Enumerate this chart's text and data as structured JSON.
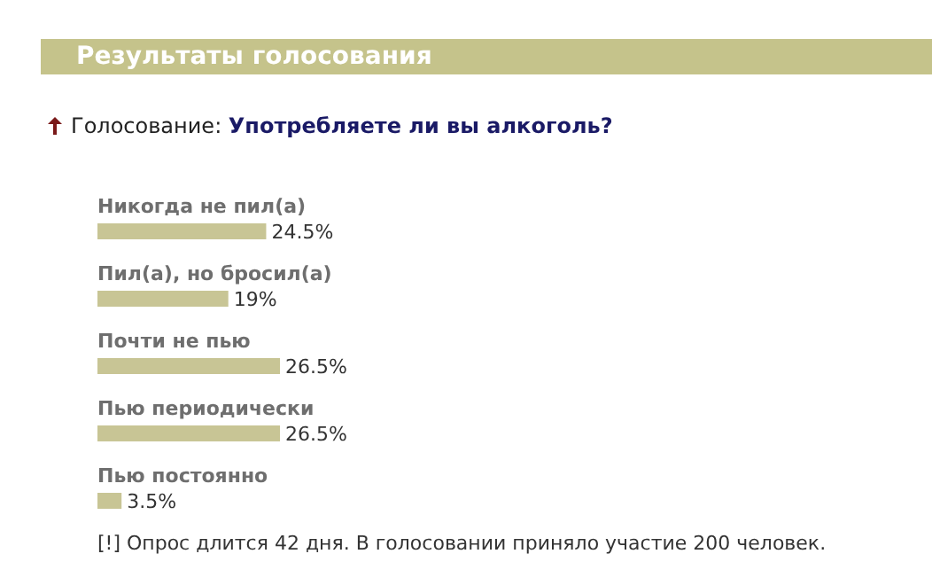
{
  "chart_data": {
    "type": "bar",
    "orientation": "horizontal",
    "title": "Результаты голосования",
    "subtitle": "Голосование: Употребляете ли вы алкоголь?",
    "categories": [
      "Никогда не пил(а)",
      "Пил(а), но бросил(а)",
      "Почти не пью",
      "Пью периодически",
      "Пью постоянно"
    ],
    "values": [
      24.5,
      19,
      26.5,
      26.5,
      3.5
    ],
    "value_labels": [
      "24.5%",
      "19%",
      "26.5%",
      "26.5%",
      "3.5%"
    ],
    "color": "#c8c595",
    "tick_labels": false,
    "grid": false,
    "legend": false,
    "annotations": [
      "[!] Опрос длится 42 дня. В голосовании приняло участие 200 человек."
    ]
  }
}
